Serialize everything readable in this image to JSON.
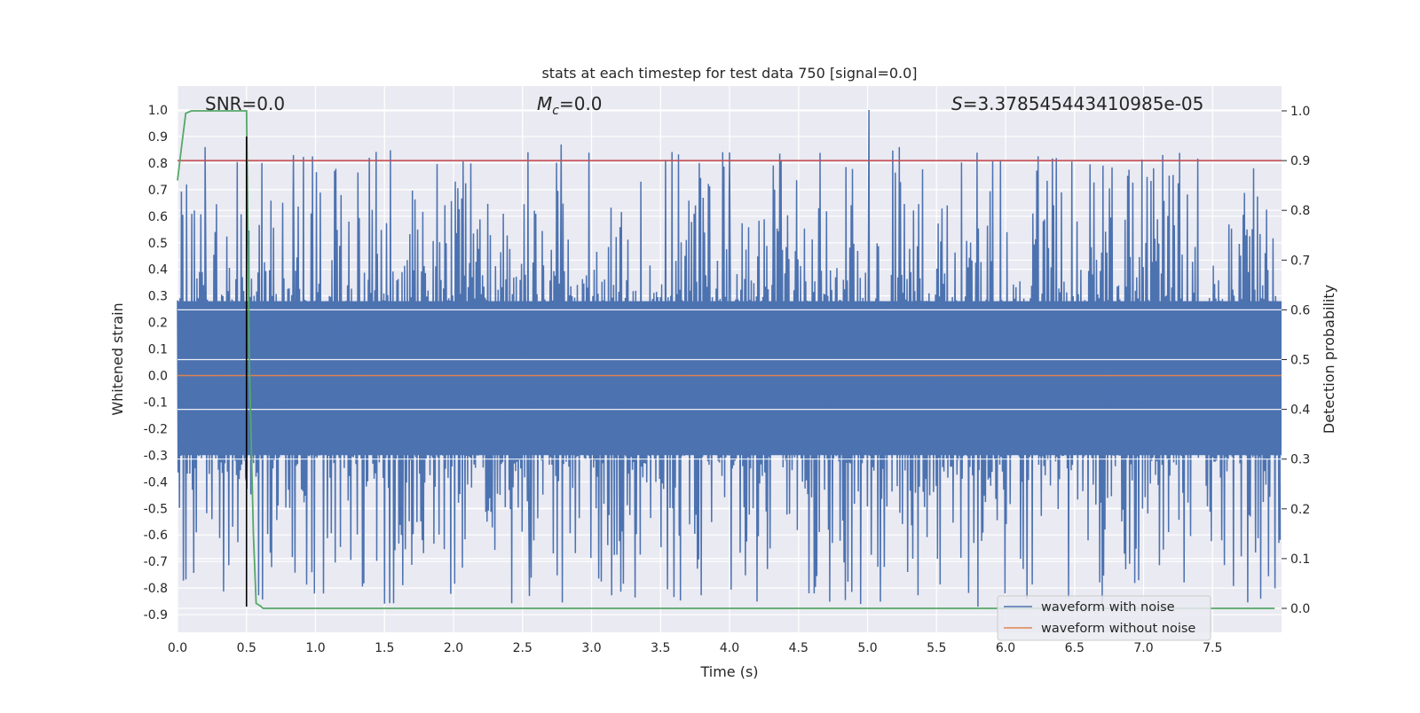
{
  "chart_data": {
    "type": "line",
    "title": "stats at each timestep for test data 750 [signal=0.0]",
    "xlabel": "Time (s)",
    "ylabel": "Whitened strain",
    "y2label": "Detection probability",
    "xlim": [
      0.0,
      8.0
    ],
    "ylim": [
      -0.95,
      1.09
    ],
    "y2lim": [
      -0.05,
      1.05
    ],
    "xticks": [
      "0.0",
      "0.5",
      "1.0",
      "1.5",
      "2.0",
      "2.5",
      "3.0",
      "3.5",
      "4.0",
      "4.5",
      "5.0",
      "5.5",
      "6.0",
      "6.5",
      "7.0",
      "7.5"
    ],
    "yticks": [
      "1.0",
      "0.9",
      "0.8",
      "0.7",
      "0.6",
      "0.5",
      "0.4",
      "0.3",
      "0.2",
      "0.1",
      "0.0",
      "-0.1",
      "-0.2",
      "-0.3",
      "-0.4",
      "-0.5",
      "-0.6",
      "-0.7",
      "-0.8",
      "-0.9"
    ],
    "y2ticks": [
      "1.0",
      "0.9",
      "0.8",
      "0.7",
      "0.6",
      "0.5",
      "0.4",
      "0.3",
      "0.2",
      "0.1",
      "0.0"
    ],
    "grid": true,
    "legend_position": "lower-right",
    "annotations": {
      "snr": "SNR=0.0",
      "mc_symbol": "M",
      "mc_sub": "c",
      "mc_value": "=0.0",
      "s_symbol": "S",
      "s_value": "=3.378545443410985e-05"
    },
    "series": [
      {
        "name": "waveform with noise",
        "color": "#4c72b0",
        "description_only_visual": "dense noise trace",
        "envelope": {
          "base_upper": 0.28,
          "base_lower": -0.3,
          "peak_upper": 0.85,
          "peak_lower": -0.86,
          "spikes": [
            {
              "x": 0.2,
              "y": 0.86
            },
            {
              "x": 0.5,
              "y": -0.4
            },
            {
              "x": 0.84,
              "y": 0.83
            },
            {
              "x": 1.39,
              "y": 0.82
            },
            {
              "x": 2.78,
              "y": 0.87
            },
            {
              "x": 4.0,
              "y": 0.84
            },
            {
              "x": 5.01,
              "y": 1.0
            },
            {
              "x": 5.23,
              "y": 0.86
            },
            {
              "x": 5.8,
              "y": -0.87
            },
            {
              "x": 6.7,
              "y": -0.86
            },
            {
              "x": 2.55,
              "y": -0.83
            },
            {
              "x": 4.95,
              "y": -0.86
            }
          ]
        }
      },
      {
        "name": "waveform without noise",
        "color": "#dd8452",
        "x": [
          0.0,
          8.0
        ],
        "y": [
          0.0,
          0.0
        ]
      },
      {
        "name": "",
        "color": "#55a868",
        "axis": "right",
        "x": [
          0.0,
          0.03,
          0.06,
          0.1,
          0.15,
          0.2,
          0.3,
          0.4,
          0.5,
          0.52,
          0.55,
          0.57,
          0.6,
          0.62,
          0.65,
          1.0,
          7.95
        ],
        "y": [
          0.86,
          0.93,
          0.995,
          1.0,
          1.0,
          1.0,
          1.0,
          1.0,
          1.0,
          0.5,
          0.15,
          0.01,
          0.005,
          0.0,
          0.0,
          0.0,
          0.0
        ]
      }
    ],
    "threshold_line": {
      "axis": "right",
      "value": 0.9,
      "color": "#c44e52"
    },
    "vertical_marker": {
      "x": 0.5,
      "color": "#000000",
      "y_from": -0.87,
      "y_to": 0.9
    }
  }
}
